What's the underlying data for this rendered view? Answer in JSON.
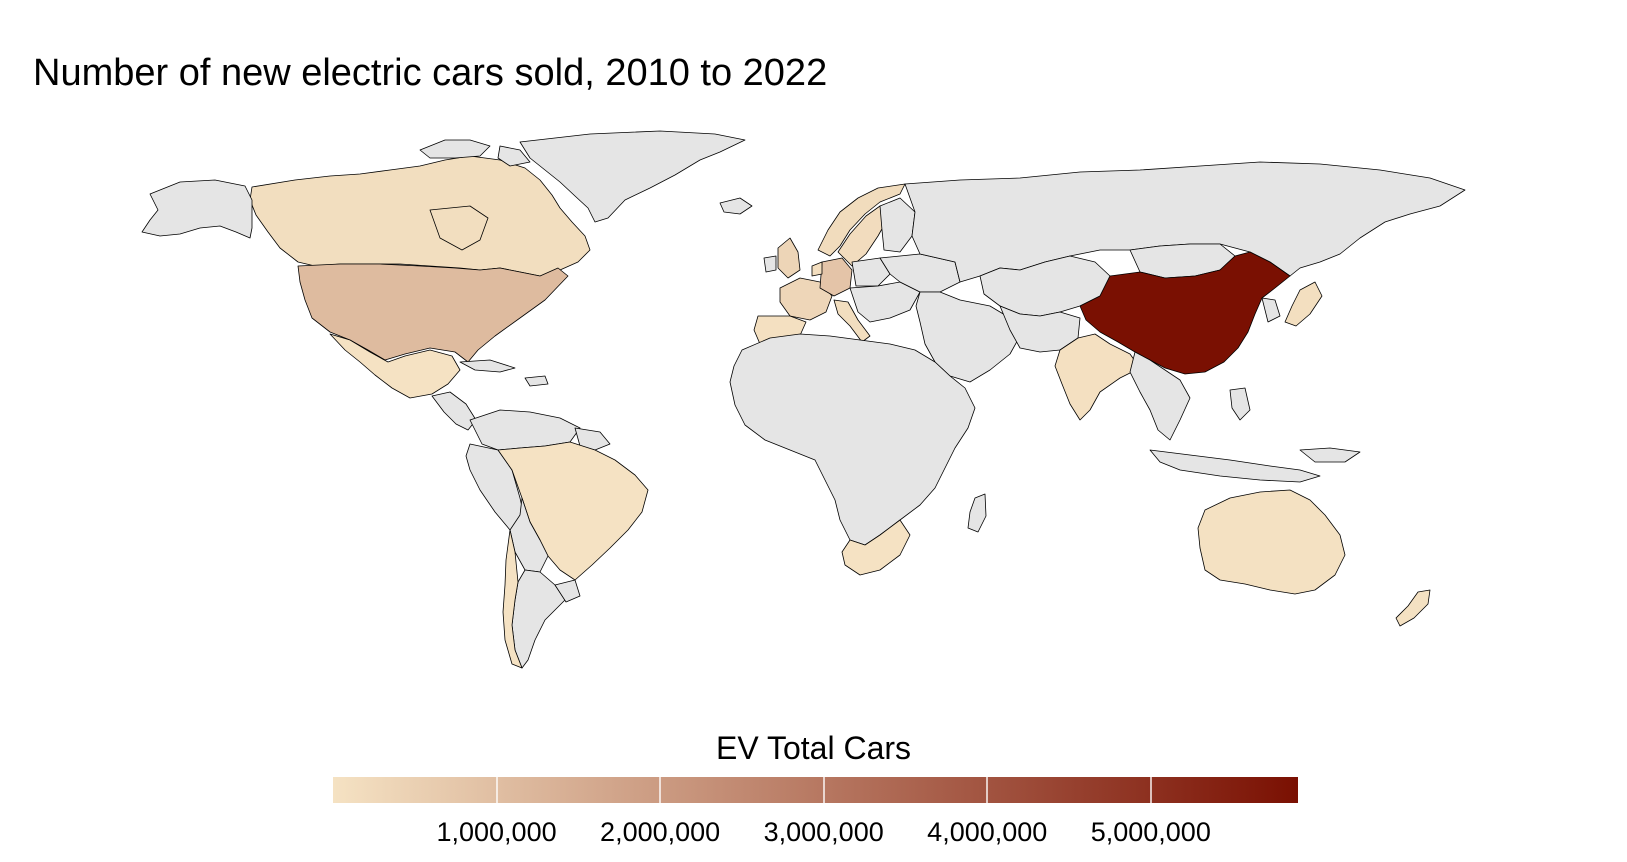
{
  "title": "Number of new electric cars sold, 2010 to 2022",
  "colors": {
    "low": "#f5e2c3",
    "high": "#7a1002",
    "no_data": "#e5e5e5",
    "border": "#000000"
  },
  "legend": {
    "title": "EV Total Cars",
    "min": 0,
    "max": 5900000,
    "ticks": [
      {
        "value": 1000000,
        "label": "1,000,000"
      },
      {
        "value": 2000000,
        "label": "2,000,000"
      },
      {
        "value": 3000000,
        "label": "3,000,000"
      },
      {
        "value": 4000000,
        "label": "4,000,000"
      },
      {
        "value": 5000000,
        "label": "5,000,000"
      }
    ]
  },
  "map_data": {
    "type": "choropleth",
    "countries": [
      {
        "name": "China",
        "value": 5900000
      },
      {
        "name": "United States",
        "value": 1100000
      },
      {
        "name": "Germany",
        "value": 830000
      },
      {
        "name": "United Kingdom",
        "value": 370000
      },
      {
        "name": "France",
        "value": 340000
      },
      {
        "name": "Norway",
        "value": 175000
      },
      {
        "name": "Sweden",
        "value": 160000
      },
      {
        "name": "Canada",
        "value": 120000
      },
      {
        "name": "Italy",
        "value": 120000
      },
      {
        "name": "Netherlands",
        "value": 110000
      },
      {
        "name": "Japan",
        "value": 90000
      },
      {
        "name": "Spain",
        "value": 70000
      },
      {
        "name": "Australia",
        "value": 40000
      },
      {
        "name": "India",
        "value": 50000
      },
      {
        "name": "Brazil",
        "value": 10000
      },
      {
        "name": "Mexico",
        "value": 10000
      },
      {
        "name": "South Africa",
        "value": 2000
      },
      {
        "name": "Chile",
        "value": 2000
      },
      {
        "name": "New Zealand",
        "value": 30000
      }
    ]
  }
}
